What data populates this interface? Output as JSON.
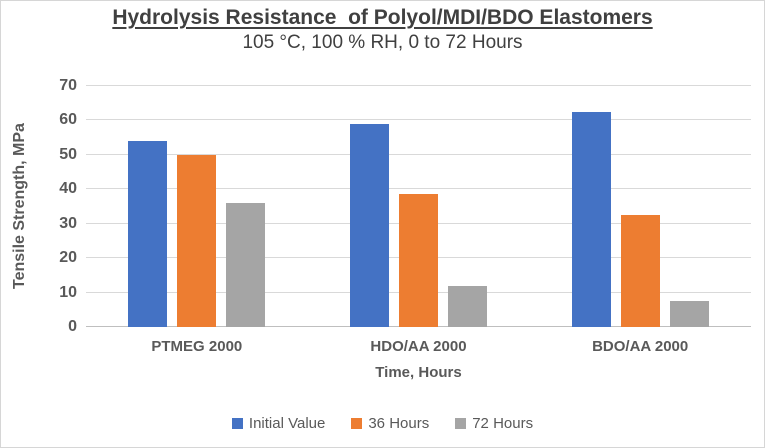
{
  "window": {
    "background_color": "#ffffff",
    "border_color": "#d6d6d6",
    "text_color": "#595959",
    "title_color": "#404040",
    "gridline_color": "#d9d9d9"
  },
  "chart_data": {
    "type": "bar",
    "title": "Hydrolysis Resistance  of Polyol/MDI/BDO Elastomers",
    "subtitle": "105 °C, 100 % RH, 0 to 72 Hours",
    "xlabel": "Time, Hours",
    "ylabel": "Tensile Strength, MPa",
    "categories": [
      "PTMEG 2000",
      "HDO/AA 2000",
      "BDO/AA 2000"
    ],
    "series": [
      {
        "name": "Initial Value",
        "color": "#4472C4",
        "values": [
          54,
          59,
          62.5
        ]
      },
      {
        "name": "36 Hours",
        "color": "#ED7D31",
        "values": [
          50,
          38.5,
          32.5
        ]
      },
      {
        "name": "72 Hours",
        "color": "#A5A5A5",
        "values": [
          36,
          12,
          7.5
        ]
      }
    ],
    "ylim": [
      0,
      70
    ],
    "yticks": [
      0,
      10,
      20,
      30,
      40,
      50,
      60,
      70
    ],
    "grid": true,
    "legend_position": "bottom"
  }
}
